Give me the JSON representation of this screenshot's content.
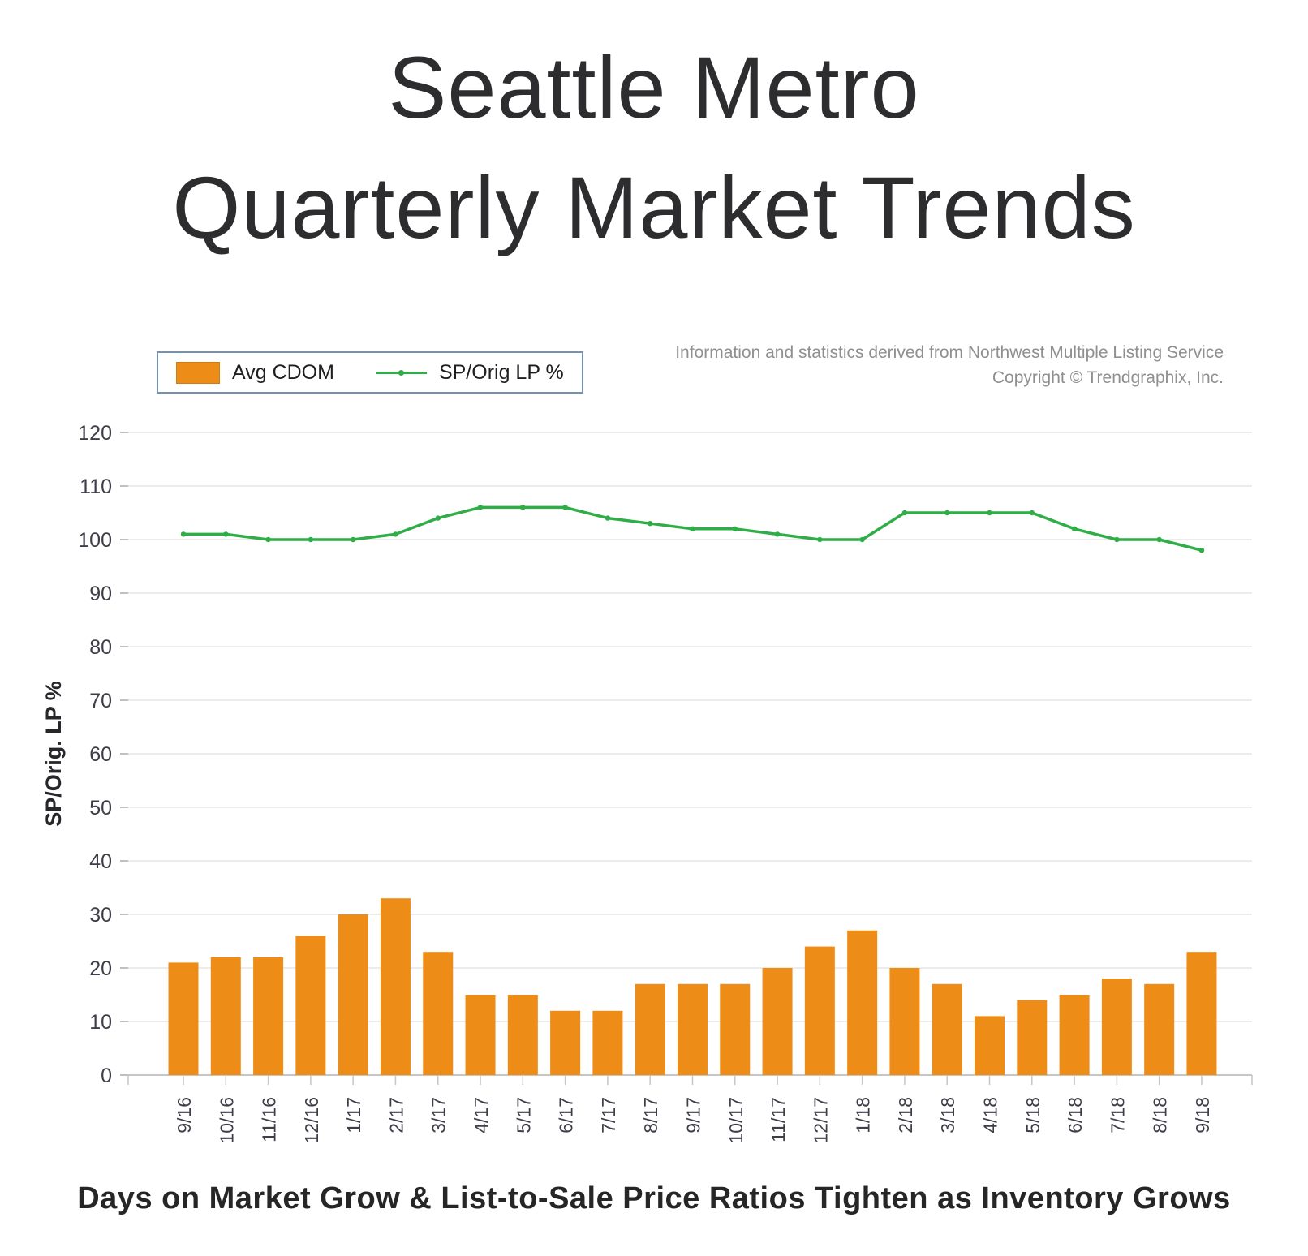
{
  "page": {
    "title_line1": "Seattle Metro",
    "title_line2": "Quarterly Market Trends",
    "source_line1": "Information and statistics derived from Northwest Multiple Listing Service",
    "source_line2": "Copyright © Trendgraphix, Inc.",
    "caption": "Days on Market Grow & List-to-Sale Price Ratios Tighten as Inventory Grows"
  },
  "colors": {
    "bar_orange": "#ee8c18",
    "line_green": "#2fad47",
    "gridline": "#e6e6e6",
    "axis_line": "#c6c6c6",
    "tick_label": "#3e3e49",
    "legend_border": "#7593b1"
  },
  "chart_data": {
    "type": "bar",
    "categories": [
      "9/16",
      "10/16",
      "11/16",
      "12/16",
      "1/17",
      "2/17",
      "3/17",
      "4/17",
      "5/17",
      "6/17",
      "7/17",
      "8/17",
      "9/17",
      "10/17",
      "11/17",
      "12/17",
      "1/18",
      "2/18",
      "3/18",
      "4/18",
      "5/18",
      "6/18",
      "7/18",
      "8/18",
      "9/18"
    ],
    "series": [
      {
        "name": "Avg CDOM",
        "type": "bar",
        "color": "#ee8c18",
        "values": [
          21,
          22,
          22,
          26,
          30,
          33,
          23,
          15,
          15,
          12,
          12,
          17,
          17,
          17,
          20,
          24,
          27,
          20,
          17,
          11,
          14,
          15,
          18,
          17,
          23
        ]
      },
      {
        "name": "SP/Orig LP %",
        "type": "line",
        "color": "#2fad47",
        "values": [
          101,
          101,
          100,
          100,
          100,
          101,
          104,
          106,
          106,
          106,
          104,
          103,
          102,
          102,
          101,
          100,
          100,
          105,
          105,
          105,
          105,
          102,
          100,
          100,
          98
        ]
      }
    ],
    "title": "Seattle Metro Quarterly Market Trends",
    "xlabel": "",
    "ylabel": "SP/Orig. LP %",
    "ylim": [
      0,
      120
    ],
    "ytick_step": 10,
    "grid": true,
    "legend_position": "top-left"
  }
}
